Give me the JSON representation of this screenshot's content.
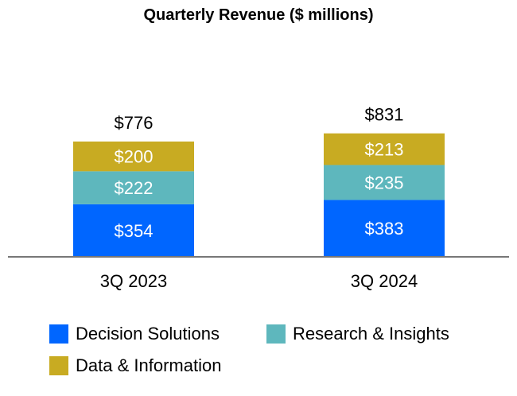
{
  "chart_data": {
    "type": "bar",
    "stacked": true,
    "title": "Quarterly Revenue ($ millions)",
    "categories": [
      "3Q 2023",
      "3Q 2024"
    ],
    "series": [
      {
        "name": "Decision Solutions",
        "values": [
          354,
          383
        ],
        "labels": [
          "$354",
          "$383"
        ],
        "color": "#0066FF"
      },
      {
        "name": "Research & Insights",
        "values": [
          222,
          235
        ],
        "labels": [
          "$222",
          "$235"
        ],
        "color": "#5EB7BD"
      },
      {
        "name": "Data & Information",
        "values": [
          200,
          213
        ],
        "labels": [
          "$200",
          "$213"
        ],
        "color": "#C8AB22"
      }
    ],
    "totals": [
      776,
      831
    ],
    "total_labels": [
      "$776",
      "$831"
    ],
    "legend_position": "bottom",
    "grid": false
  }
}
